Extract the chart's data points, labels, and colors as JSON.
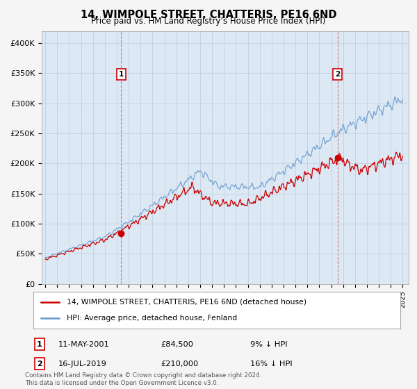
{
  "title": "14, WIMPOLE STREET, CHATTERIS, PE16 6ND",
  "subtitle": "Price paid vs. HM Land Registry’s House Price Index (HPI)",
  "ylabel_ticks": [
    "£0",
    "£50K",
    "£100K",
    "£150K",
    "£200K",
    "£250K",
    "£300K",
    "£350K",
    "£400K"
  ],
  "ytick_values": [
    0,
    50000,
    100000,
    150000,
    200000,
    250000,
    300000,
    350000,
    400000
  ],
  "ylim": [
    0,
    420000
  ],
  "xlim_start": 1994.7,
  "xlim_end": 2025.5,
  "sale1_x": 2001.37,
  "sale1_y": 84500,
  "sale2_x": 2019.54,
  "sale2_y": 210000,
  "sale1_label": "11-MAY-2001",
  "sale1_price": "£84,500",
  "sale1_note": "9% ↓ HPI",
  "sale2_label": "16-JUL-2019",
  "sale2_price": "£210,000",
  "sale2_note": "16% ↓ HPI",
  "legend_line1": "14, WIMPOLE STREET, CHATTERIS, PE16 6ND (detached house)",
  "legend_line2": "HPI: Average price, detached house, Fenland",
  "footer": "Contains HM Land Registry data © Crown copyright and database right 2024.\nThis data is licensed under the Open Government Licence v3.0.",
  "line_color_red": "#cc0000",
  "line_color_blue": "#6699cc",
  "bg_color": "#f5f5f5",
  "plot_bg": "#dce9f5"
}
